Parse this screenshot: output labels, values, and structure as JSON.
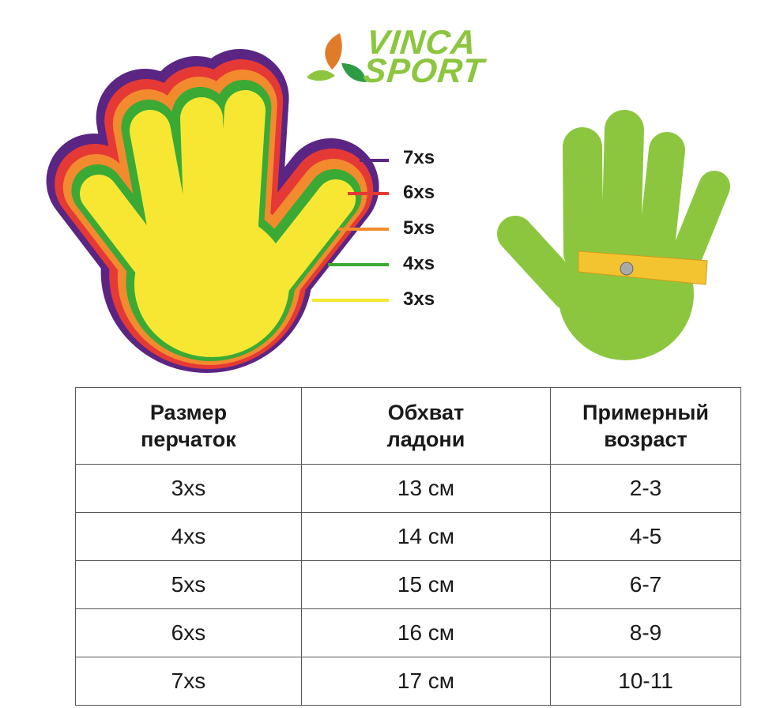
{
  "logo": {
    "line1": "VINCA",
    "line2": "SPORT",
    "color": "#8cc63f"
  },
  "size_legend": [
    {
      "label": "7xs",
      "color": "#5b2583"
    },
    {
      "label": "6xs",
      "color": "#e53935"
    },
    {
      "label": "5xs",
      "color": "#f28a2e"
    },
    {
      "label": "4xs",
      "color": "#3aaa35"
    },
    {
      "label": "3xs",
      "color": "#f7e733"
    }
  ],
  "measuring_hand_color": "#8cc63f",
  "table": {
    "headers": [
      "Размер перчаток",
      "Обхват ладони",
      "Примерный возраст"
    ],
    "rows": [
      [
        "3xs",
        "13 см",
        "2-3"
      ],
      [
        "4xs",
        "14 см",
        "4-5"
      ],
      [
        "5xs",
        "15 см",
        "6-7"
      ],
      [
        "6xs",
        "16 см",
        "8-9"
      ],
      [
        "7xs",
        "17 см",
        "10-11"
      ]
    ]
  }
}
